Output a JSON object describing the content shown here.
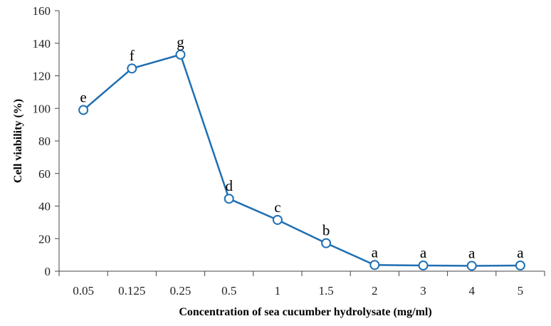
{
  "chart_data": {
    "type": "line",
    "xlabel": "Concentration of sea cucumber hydrolysate (mg/ml)",
    "ylabel": "Cell viability (%)",
    "categories": [
      "0.05",
      "0.125",
      "0.25",
      "0.5",
      "1",
      "1.5",
      "2",
      "3",
      "4",
      "5"
    ],
    "series": [
      {
        "values": [
          99,
          124.5,
          133,
          44.5,
          31.5,
          17.2,
          3.8,
          3.5,
          3.3,
          3.5
        ],
        "point_labels": [
          "e",
          "f",
          "g",
          "d",
          "c",
          "b",
          "a",
          "a",
          "a",
          "a"
        ]
      }
    ],
    "ylim": [
      0,
      160
    ],
    "yticks": [
      "0",
      "20",
      "40",
      "60",
      "80",
      "100",
      "120",
      "140",
      "160"
    ],
    "grid": false,
    "legend": "none",
    "line_color": "#1f6fb2",
    "marker": "open-circle"
  }
}
